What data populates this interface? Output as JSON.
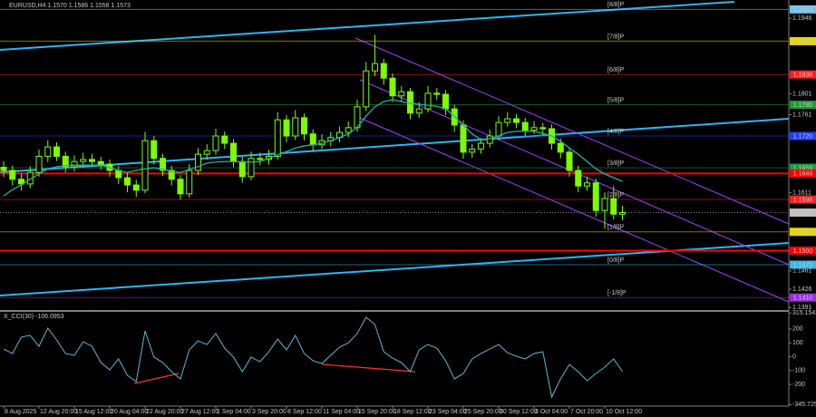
{
  "chart_data": {
    "type": "candlestick",
    "title": "EURUSD,H4  1.1570 1.1586 1.1558 1.1573",
    "categories": [
      "8 Aug 2025",
      null,
      null,
      null,
      "12 Aug 20:00",
      null,
      null,
      null,
      "15 Aug 12:00",
      null,
      null,
      null,
      "20 Aug 04:00",
      null,
      null,
      null,
      "22 Aug 20:00",
      null,
      null,
      null,
      "27 Aug 12:00",
      null,
      null,
      null,
      "1 Sep 04:00",
      null,
      null,
      null,
      "3 Sep 20:00",
      null,
      null,
      null,
      "8 Sep 12:00",
      null,
      null,
      null,
      "11 Sep 04:00",
      null,
      null,
      null,
      "15 Sep 20:00",
      null,
      null,
      null,
      "18 Sep 12:00",
      null,
      null,
      null,
      "23 Sep 04:00",
      null,
      null,
      null,
      "25 Sep 20:00",
      null,
      null,
      null,
      "30 Sep 12:00",
      null,
      null,
      null,
      "3 Oct 04:00",
      null,
      null,
      null,
      "7 Oct 20:00",
      null,
      null,
      null,
      "10 Oct 12:00",
      null,
      null
    ],
    "ohlc": [
      [
        1.166,
        1.1672,
        1.1641,
        1.1654
      ],
      [
        1.1654,
        1.1663,
        1.1625,
        1.1637
      ],
      [
        1.1637,
        1.1648,
        1.1615,
        1.1628
      ],
      [
        1.1628,
        1.1662,
        1.162,
        1.165
      ],
      [
        1.165,
        1.1694,
        1.1642,
        1.1681
      ],
      [
        1.1681,
        1.1712,
        1.167,
        1.1699
      ],
      [
        1.1699,
        1.1708,
        1.1672,
        1.1681
      ],
      [
        1.1681,
        1.169,
        1.165,
        1.1661
      ],
      [
        1.1661,
        1.1683,
        1.1652,
        1.1671
      ],
      [
        1.1671,
        1.1688,
        1.166,
        1.1675
      ],
      [
        1.1675,
        1.1686,
        1.1662,
        1.1671
      ],
      [
        1.1671,
        1.168,
        1.1655,
        1.1666
      ],
      [
        1.1666,
        1.1675,
        1.1642,
        1.1654
      ],
      [
        1.1654,
        1.1662,
        1.1628,
        1.164
      ],
      [
        1.164,
        1.165,
        1.1612,
        1.1626
      ],
      [
        1.1626,
        1.1636,
        1.1603,
        1.1616
      ],
      [
        1.1616,
        1.1728,
        1.161,
        1.1711
      ],
      [
        1.1711,
        1.172,
        1.1665,
        1.1677
      ],
      [
        1.1677,
        1.1686,
        1.1643,
        1.1654
      ],
      [
        1.1654,
        1.1663,
        1.1625,
        1.1637
      ],
      [
        1.1637,
        1.1645,
        1.1598,
        1.1609
      ],
      [
        1.1609,
        1.1666,
        1.1602,
        1.1654
      ],
      [
        1.1654,
        1.1697,
        1.1645,
        1.1685
      ],
      [
        1.1685,
        1.1704,
        1.1674,
        1.1692
      ],
      [
        1.1692,
        1.1734,
        1.1684,
        1.172
      ],
      [
        1.172,
        1.1729,
        1.1695,
        1.1706
      ],
      [
        1.1706,
        1.1714,
        1.166,
        1.1671
      ],
      [
        1.1671,
        1.168,
        1.163,
        1.1642
      ],
      [
        1.1642,
        1.169,
        1.1635,
        1.1677
      ],
      [
        1.1677,
        1.1688,
        1.1664,
        1.1675
      ],
      [
        1.1675,
        1.1694,
        1.1665,
        1.1681
      ],
      [
        1.1681,
        1.1766,
        1.1674,
        1.1751
      ],
      [
        1.1751,
        1.176,
        1.1708,
        1.172
      ],
      [
        1.172,
        1.177,
        1.1712,
        1.1755
      ],
      [
        1.1755,
        1.1763,
        1.1712,
        1.1724
      ],
      [
        1.1724,
        1.1733,
        1.169,
        1.1703
      ],
      [
        1.1703,
        1.1723,
        1.1695,
        1.1711
      ],
      [
        1.1711,
        1.1728,
        1.17,
        1.1717
      ],
      [
        1.1717,
        1.1738,
        1.1708,
        1.1727
      ],
      [
        1.1727,
        1.1748,
        1.1718,
        1.1736
      ],
      [
        1.1736,
        1.179,
        1.1728,
        1.1776
      ],
      [
        1.1776,
        1.1862,
        1.1768,
        1.1845
      ],
      [
        1.1845,
        1.1914,
        1.1835,
        1.1859
      ],
      [
        1.1859,
        1.1868,
        1.1818,
        1.1831
      ],
      [
        1.1831,
        1.184,
        1.1785,
        1.1797
      ],
      [
        1.1797,
        1.1816,
        1.1786,
        1.1805
      ],
      [
        1.1805,
        1.1812,
        1.1752,
        1.1764
      ],
      [
        1.1764,
        1.1785,
        1.1755,
        1.1772
      ],
      [
        1.1772,
        1.1816,
        1.1765,
        1.1802
      ],
      [
        1.1802,
        1.1812,
        1.179,
        1.18
      ],
      [
        1.18,
        1.1808,
        1.176,
        1.1772
      ],
      [
        1.1772,
        1.178,
        1.1728,
        1.1741
      ],
      [
        1.1741,
        1.175,
        1.1676,
        1.1689
      ],
      [
        1.1689,
        1.1705,
        1.1678,
        1.1695
      ],
      [
        1.1695,
        1.1716,
        1.1686,
        1.1706
      ],
      [
        1.1706,
        1.1732,
        1.1698,
        1.172
      ],
      [
        1.172,
        1.1758,
        1.1712,
        1.1746
      ],
      [
        1.1746,
        1.1766,
        1.1738,
        1.1753
      ],
      [
        1.1753,
        1.1762,
        1.1735,
        1.1746
      ],
      [
        1.1746,
        1.1755,
        1.172,
        1.1731
      ],
      [
        1.1731,
        1.1748,
        1.1724,
        1.1736
      ],
      [
        1.1736,
        1.1745,
        1.1722,
        1.1734
      ],
      [
        1.1734,
        1.1742,
        1.1694,
        1.1706
      ],
      [
        1.1706,
        1.1715,
        1.1677,
        1.1689
      ],
      [
        1.1689,
        1.1697,
        1.1642,
        1.1654
      ],
      [
        1.1654,
        1.1663,
        1.1612,
        1.1624
      ],
      [
        1.1624,
        1.1642,
        1.1615,
        1.163
      ],
      [
        1.163,
        1.1638,
        1.1565,
        1.1577
      ],
      [
        1.1577,
        1.1612,
        1.1542,
        1.16
      ],
      [
        1.16,
        1.1624,
        1.156,
        1.157
      ],
      [
        1.157,
        1.1586,
        1.1558,
        1.1573
      ]
    ],
    "candle_colors": {
      "up": "#000000",
      "down": "#7cfc00",
      "outline": "#7cfc00"
    },
    "ma": {
      "color": "#20b2aa",
      "values": [
        1.1605,
        1.1617,
        1.1626,
        1.1637,
        1.1647,
        1.1657,
        1.1661,
        1.1663,
        1.1664,
        1.1664,
        1.1664,
        1.1664,
        1.1659,
        1.1654,
        1.165,
        1.1654,
        1.1657,
        1.1659,
        1.1656,
        1.1652,
        1.165,
        1.1656,
        1.1661,
        1.1668,
        1.167,
        1.1671,
        1.1671,
        1.167,
        1.167,
        1.1671,
        1.1677,
        1.1684,
        1.169,
        1.1697,
        1.1701,
        1.1703,
        1.1706,
        1.1711,
        1.1717,
        1.1724,
        1.1737,
        1.1758,
        1.1776,
        1.1786,
        1.179,
        1.1786,
        1.1783,
        1.1781,
        1.1779,
        1.1777,
        1.1772,
        1.1758,
        1.1741,
        1.1724,
        1.1713,
        1.1715,
        1.172,
        1.1727,
        1.1729,
        1.1729,
        1.1729,
        1.1725,
        1.172,
        1.171,
        1.1697,
        1.1685,
        1.1671,
        1.1657,
        1.1647,
        1.164,
        1.1633
      ]
    },
    "ylim": [
      1.1386,
      1.1981
    ],
    "yticks": [
      1.1946,
      1.1801,
      1.1761,
      1.1611,
      1.1461,
      1.1426,
      1.1391
    ],
    "current": {
      "value": 1.1573,
      "label": "1.1573"
    },
    "levels": [
      {
        "name": "[8/8]P",
        "value": 1.1963,
        "label": "1.1963",
        "color": "#6ec6f0"
      },
      {
        "name": "[7/8]P",
        "value": 1.1902,
        "label": "1.1902",
        "color": "#e6d800"
      },
      {
        "name": "[6/8]P",
        "value": 1.1838,
        "label": "1.1838",
        "color": "#ff2020"
      },
      {
        "name": "[5/8]P",
        "value": 1.178,
        "label": "1.1780",
        "color": "#1f9a3a"
      },
      {
        "name": "[4/8]P",
        "value": 1.172,
        "label": "1.1720",
        "color": "#2040ff"
      },
      {
        "name": "[3/8]P",
        "value": 1.1659,
        "label": "1.1659",
        "color": "#1f9a3a"
      },
      {
        "name": "[2/8]P",
        "value": 1.1598,
        "label": "1.1598",
        "color": "#ff2020"
      },
      {
        "name": "[1/8]P",
        "value": 1.1536,
        "label": "1.1536",
        "color": "#e6d800"
      },
      {
        "name": "[0/8]P",
        "value": 1.1473,
        "label": "1.1473",
        "color": "#3cb8e6"
      },
      {
        "name": "[-1/8]P",
        "value": 1.141,
        "label": "1.1410",
        "color": "#9b30e0"
      }
    ],
    "lines": [
      {
        "value": 1.1648,
        "label": "1.1648",
        "color": "#ff0000"
      },
      {
        "value": 1.15,
        "label": "1.1500",
        "color": "#ff0000"
      }
    ],
    "indicator": {
      "title": "X_CCI(30) -106.0953",
      "color": "#5fb7d4",
      "ylim": [
        -356.2,
        323.5
      ],
      "yticks": [
        315.1542,
        200,
        100,
        0,
        -100,
        -200,
        -345.7258
      ],
      "values": [
        56,
        23,
        141,
        154,
        75,
        206,
        121,
        23,
        10,
        108,
        75,
        -42,
        -95,
        -16,
        -134,
        -180,
        186,
        -3,
        -42,
        -108,
        -160,
        49,
        114,
        88,
        167,
        62,
        -3,
        -108,
        -3,
        -36,
        36,
        127,
        49,
        154,
        23,
        -29,
        -49,
        10,
        69,
        101,
        167,
        284,
        232,
        36,
        -10,
        -42,
        -108,
        49,
        88,
        62,
        -29,
        -160,
        -121,
        -16,
        23,
        56,
        88,
        29,
        3,
        -16,
        23,
        36,
        -291,
        -160,
        -56,
        -108,
        -173,
        -121,
        -75,
        -16,
        -106.0953
      ]
    }
  }
}
